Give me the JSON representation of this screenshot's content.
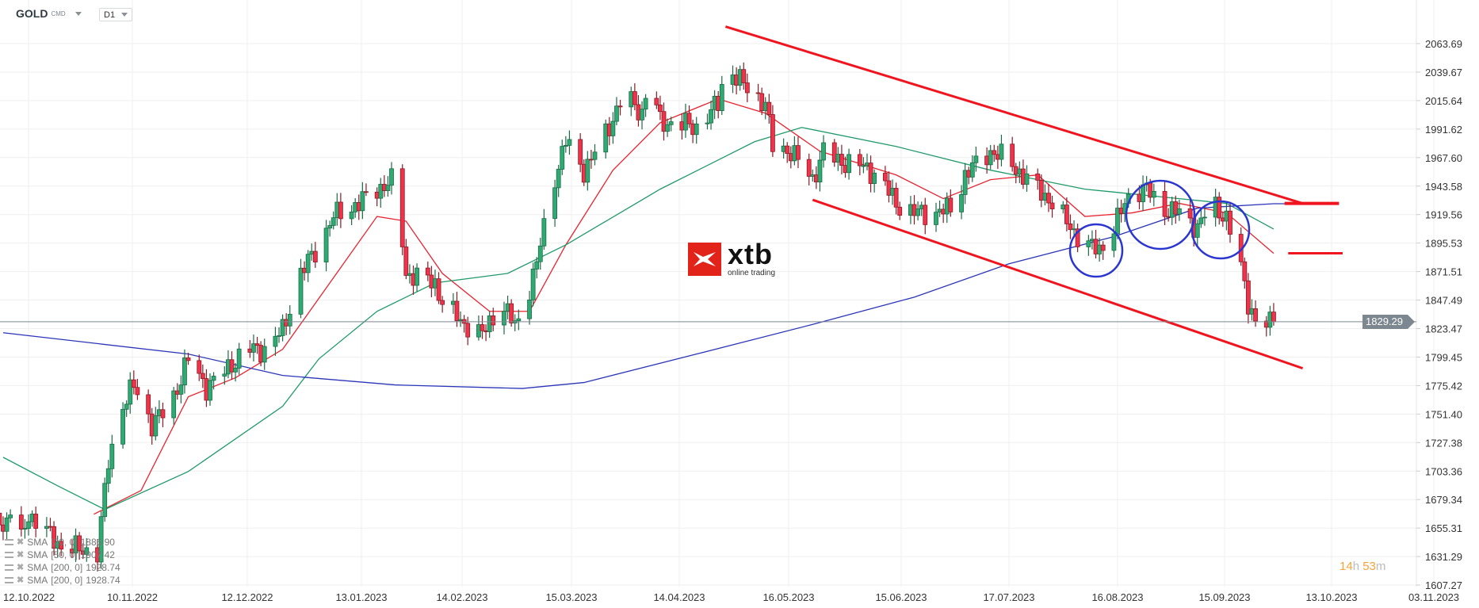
{
  "header": {
    "symbol": "GOLD",
    "symbol_type": "CMD",
    "timeframe": "D1"
  },
  "logo": {
    "brand": "xtb",
    "tagline": "online trading",
    "color": "#e2231a"
  },
  "indicators": [
    {
      "label": "SMA",
      "params": "[20,  0]",
      "value": "1886.90",
      "color": "#e8232f"
    },
    {
      "label": "SMA",
      "params": "[50,  0]",
      "value": "1907.42",
      "color": "#1f9a6a"
    },
    {
      "label": "SMA",
      "params": "[200,  0]",
      "value": "1928.74",
      "color": "#2b35b8"
    },
    {
      "label": "SMA",
      "params": "[200,  0]",
      "value": "1928.74",
      "color": "#2b35b8"
    }
  ],
  "timer": {
    "hours": "14",
    "h": "h",
    "minutes": "53",
    "m": "m"
  },
  "current_price": "1829.29",
  "chart_data": {
    "type": "candlestick",
    "title": "",
    "y_ticks": [
      "2063.69",
      "2039.67",
      "2015.64",
      "1991.62",
      "1967.60",
      "1943.58",
      "1919.56",
      "1895.53",
      "1871.51",
      "1847.49",
      "1823.47",
      "1799.45",
      "1775.42",
      "1751.40",
      "1727.38",
      "1703.36",
      "1679.34",
      "1655.31",
      "1631.29",
      "1607.27"
    ],
    "ylim": [
      1607.27,
      2063.69
    ],
    "x_ticks": [
      "12.10.2022",
      "10.11.2022",
      "12.12.2022",
      "13.01.2023",
      "14.02.2023",
      "15.03.2023",
      "14.04.2023",
      "16.05.2023",
      "15.06.2023",
      "17.07.2023",
      "16.08.2023",
      "15.09.2023",
      "13.10.2023",
      "03.11.2023"
    ],
    "xlim": [
      "2022-10-05",
      "2023-11-07"
    ],
    "grid": true,
    "close_path": [
      [
        "2022-10-12",
        1667
      ],
      [
        "2022-10-21",
        1640
      ],
      [
        "2022-10-31",
        1635
      ],
      [
        "2022-11-03",
        1711
      ],
      [
        "2022-11-07",
        1760
      ],
      [
        "2022-11-10",
        1775
      ],
      [
        "2022-11-15",
        1743
      ],
      [
        "2022-11-20",
        1758
      ],
      [
        "2022-11-25",
        1798
      ],
      [
        "2022-11-30",
        1774
      ],
      [
        "2022-12-06",
        1790
      ],
      [
        "2022-12-11",
        1806
      ],
      [
        "2022-12-16",
        1806
      ],
      [
        "2022-12-21",
        1822
      ],
      [
        "2022-12-26",
        1870
      ],
      [
        "2022-12-31",
        1894
      ],
      [
        "2023-01-04",
        1918
      ],
      [
        "2023-01-11",
        1929
      ],
      [
        "2023-01-16",
        1941
      ],
      [
        "2023-01-21",
        1949
      ],
      [
        "2023-01-24",
        1870
      ],
      [
        "2023-02-01",
        1862
      ],
      [
        "2023-02-03",
        1846
      ],
      [
        "2023-02-08",
        1830
      ],
      [
        "2023-02-14",
        1818
      ],
      [
        "2023-02-19",
        1846
      ],
      [
        "2023-02-23",
        1826
      ],
      [
        "2023-02-25",
        1838
      ],
      [
        "2023-03-01",
        1878
      ],
      [
        "2023-03-05",
        1941
      ],
      [
        "2023-03-09",
        1981
      ],
      [
        "2023-03-14",
        1957
      ],
      [
        "2023-03-19",
        1981
      ],
      [
        "2023-03-25",
        2021
      ],
      [
        "2023-03-30",
        2005
      ],
      [
        "2023-04-01",
        2037
      ],
      [
        "2023-04-04",
        1997
      ],
      [
        "2023-04-09",
        1997
      ],
      [
        "2023-04-14",
        1993
      ],
      [
        "2023-04-20",
        2013
      ],
      [
        "2023-04-22",
        2045
      ],
      [
        "2023-04-27",
        2029
      ],
      [
        "2023-05-03",
        2013
      ],
      [
        "2023-05-05",
        1977
      ],
      [
        "2023-05-10",
        1973
      ],
      [
        "2023-05-16",
        1949
      ],
      [
        "2023-05-19",
        1973
      ],
      [
        "2023-05-23",
        1965
      ],
      [
        "2023-05-29",
        1961
      ],
      [
        "2023-06-03",
        1953
      ],
      [
        "2023-06-08",
        1929
      ],
      [
        "2023-06-13",
        1921
      ],
      [
        "2023-06-18",
        1921
      ],
      [
        "2023-06-24",
        1925
      ],
      [
        "2023-06-27",
        1953
      ],
      [
        "2023-07-04",
        1973
      ],
      [
        "2023-07-09",
        1965
      ],
      [
        "2023-07-14",
        1949
      ],
      [
        "2023-07-20",
        1933
      ],
      [
        "2023-07-25",
        1913
      ],
      [
        "2023-07-30",
        1894
      ],
      [
        "2023-08-03",
        1890
      ],
      [
        "2023-08-07",
        1909
      ],
      [
        "2023-08-12",
        1941
      ],
      [
        "2023-08-16",
        1941
      ],
      [
        "2023-08-20",
        1925
      ],
      [
        "2023-08-25",
        1921
      ],
      [
        "2023-08-30",
        1909
      ],
      [
        "2023-09-03",
        1929
      ],
      [
        "2023-09-07",
        1917
      ],
      [
        "2023-09-11",
        1874
      ],
      [
        "2023-09-13",
        1846
      ],
      [
        "2023-09-16",
        1822
      ],
      [
        "2023-09-20",
        1829.29
      ]
    ],
    "series": [
      {
        "name": "SMA [20, 0]",
        "color": "#e8232f",
        "points": [
          [
            "2022-10-30",
            1667
          ],
          [
            "2022-11-12",
            1687
          ],
          [
            "2022-11-25",
            1766
          ],
          [
            "2022-12-08",
            1782
          ],
          [
            "2022-12-21",
            1806
          ],
          [
            "2023-01-03",
            1862
          ],
          [
            "2023-01-16",
            1918
          ],
          [
            "2023-01-24",
            1914
          ],
          [
            "2023-02-03",
            1870
          ],
          [
            "2023-02-16",
            1838
          ],
          [
            "2023-02-27",
            1838
          ],
          [
            "2023-03-09",
            1894
          ],
          [
            "2023-03-22",
            1957
          ],
          [
            "2023-04-04",
            1997
          ],
          [
            "2023-04-20",
            2017
          ],
          [
            "2023-05-03",
            2005
          ],
          [
            "2023-05-18",
            1973
          ],
          [
            "2023-06-08",
            1953
          ],
          [
            "2023-06-21",
            1933
          ],
          [
            "2023-07-04",
            1949
          ],
          [
            "2023-07-17",
            1953
          ],
          [
            "2023-07-30",
            1918
          ],
          [
            "2023-08-12",
            1921
          ],
          [
            "2023-08-25",
            1929
          ],
          [
            "2023-09-07",
            1921
          ],
          [
            "2023-09-20",
            1886.9
          ]
        ]
      },
      {
        "name": "SMA [50, 0]",
        "color": "#1f9a6a",
        "points": [
          [
            "2022-10-05",
            1715
          ],
          [
            "2022-10-20",
            1691
          ],
          [
            "2022-11-02",
            1671
          ],
          [
            "2022-11-25",
            1703
          ],
          [
            "2022-12-21",
            1758
          ],
          [
            "2022-12-31",
            1798
          ],
          [
            "2023-01-16",
            1838
          ],
          [
            "2023-02-01",
            1862
          ],
          [
            "2023-02-21",
            1870
          ],
          [
            "2023-03-09",
            1894
          ],
          [
            "2023-04-04",
            1941
          ],
          [
            "2023-04-30",
            1981
          ],
          [
            "2023-05-13",
            1993
          ],
          [
            "2023-06-08",
            1977
          ],
          [
            "2023-07-04",
            1957
          ],
          [
            "2023-07-30",
            1941
          ],
          [
            "2023-08-25",
            1933
          ],
          [
            "2023-09-07",
            1929
          ],
          [
            "2023-09-20",
            1907.42
          ]
        ]
      },
      {
        "name": "SMA [200, 0]",
        "color": "#2b35b8",
        "points": [
          [
            "2022-10-05",
            1820
          ],
          [
            "2022-11-25",
            1802
          ],
          [
            "2022-12-21",
            1784
          ],
          [
            "2023-01-21",
            1776
          ],
          [
            "2023-02-25",
            1773
          ],
          [
            "2023-03-14",
            1778
          ],
          [
            "2023-04-14",
            1802
          ],
          [
            "2023-05-16",
            1827
          ],
          [
            "2023-06-13",
            1850
          ],
          [
            "2023-07-09",
            1878
          ],
          [
            "2023-08-07",
            1901
          ],
          [
            "2023-08-30",
            1925
          ],
          [
            "2023-09-20",
            1928.74
          ],
          [
            "2023-09-28",
            1928.74
          ]
        ]
      }
    ],
    "annotations": {
      "trendlines": [
        {
          "color": "#f0141e",
          "from": [
            "2023-04-22",
            2078
          ],
          "to": [
            "2023-09-28",
            1929
          ]
        },
        {
          "color": "#f0141e",
          "from": [
            "2023-05-16",
            1932
          ],
          "to": [
            "2023-09-28",
            1790
          ]
        }
      ],
      "levels": [
        {
          "color": "#f0141e",
          "price": 1929,
          "from": "2023-09-23",
          "to": "2023-10-08"
        },
        {
          "color": "#f0141e",
          "price": 1887,
          "from": "2023-09-24",
          "to": "2023-10-09"
        }
      ],
      "circle_color": "#2b35d0"
    },
    "up_color": "#2eaa72",
    "down_color": "#f0334a",
    "price_line_color": "#7d8790"
  }
}
